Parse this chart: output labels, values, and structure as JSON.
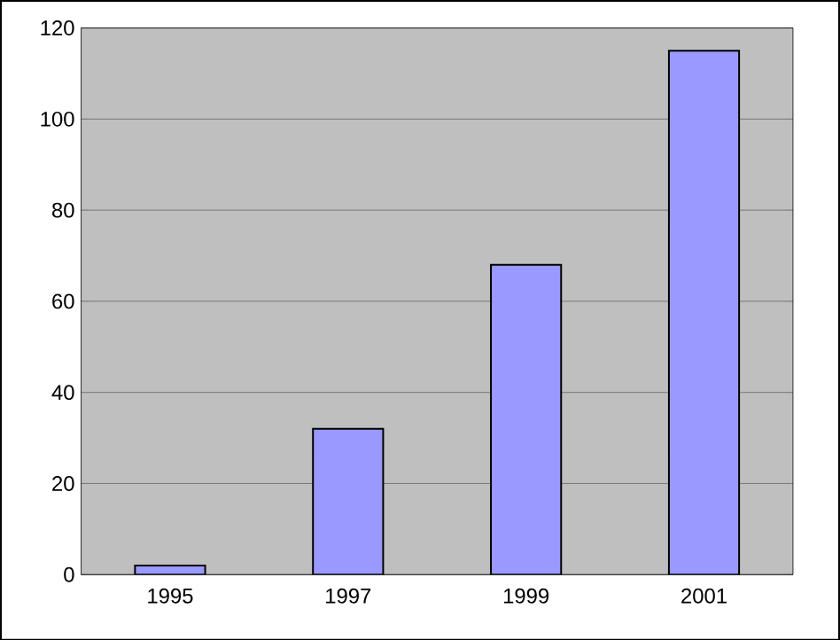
{
  "chart_data": {
    "type": "bar",
    "categories": [
      "1995",
      "1997",
      "1999",
      "2001"
    ],
    "values": [
      2,
      32,
      68,
      115
    ],
    "color": "#9999ff",
    "ylim": [
      0,
      120
    ],
    "yticks": [
      0,
      20,
      40,
      60,
      80,
      100,
      120
    ],
    "grid": "y"
  }
}
